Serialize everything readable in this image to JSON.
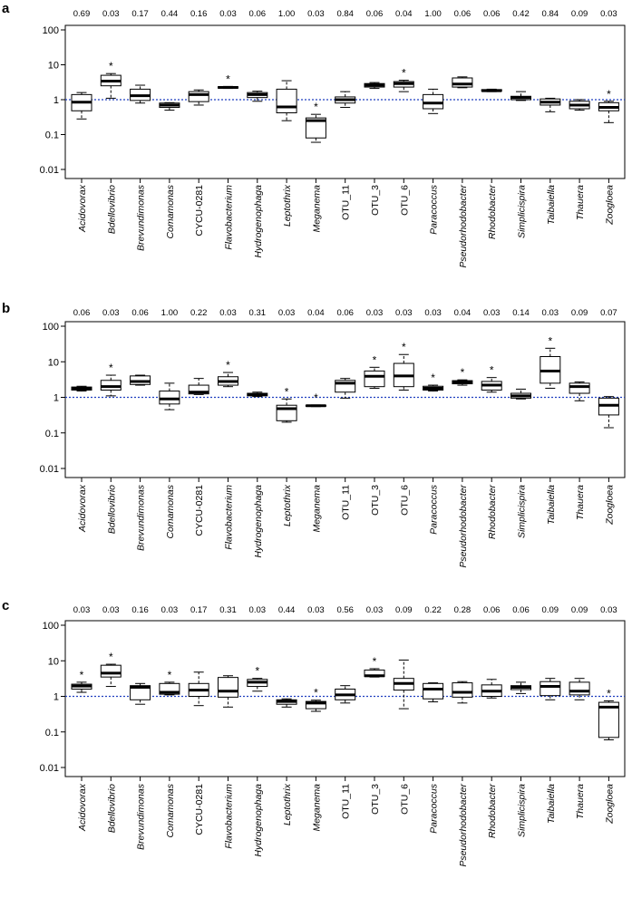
{
  "chart_data": [
    {
      "type": "box",
      "panel": "a",
      "yscale": "log",
      "ylim": [
        0.01,
        100
      ],
      "ytick_labels": [
        "0.01",
        "0.1",
        "1",
        "10",
        "100"
      ],
      "reference_line": 1,
      "reference_line_color": "#1f3fbf",
      "categories": [
        "Acidovorax",
        "Bdellovibrio",
        "Brevundimonas",
        "Comamonas",
        "CYCU-0281",
        "Flavobacterium",
        "Hydrogenophaga",
        "Leptothrix",
        "Meganema",
        "OTU_11",
        "OTU_3",
        "OTU_6",
        "Paracoccus",
        "Pseudorhodobacter",
        "Rhodobacter",
        "Simplicispira",
        "Taibaiella",
        "Thauera",
        "Zoogloea"
      ],
      "italic": [
        true,
        true,
        true,
        true,
        false,
        true,
        true,
        true,
        true,
        false,
        false,
        false,
        true,
        true,
        true,
        true,
        true,
        true,
        true
      ],
      "pvalues": [
        "0.69",
        "0.03",
        "0.17",
        "0.44",
        "0.16",
        "0.03",
        "0.06",
        "1.00",
        "0.03",
        "0.84",
        "0.06",
        "0.04",
        "1.00",
        "0.06",
        "0.06",
        "0.42",
        "0.84",
        "0.09",
        "0.03"
      ],
      "significance_marker": "*",
      "significant": [
        false,
        true,
        false,
        false,
        false,
        true,
        false,
        false,
        true,
        false,
        false,
        true,
        false,
        false,
        false,
        false,
        false,
        false,
        true
      ],
      "boxes": [
        {
          "min": 0.28,
          "q1": 0.48,
          "median": 0.85,
          "q3": 1.4,
          "max": 1.6
        },
        {
          "min": 1.1,
          "q1": 2.5,
          "median": 3.4,
          "q3": 5.0,
          "max": 5.6
        },
        {
          "min": 0.8,
          "q1": 0.95,
          "median": 1.3,
          "q3": 2.0,
          "max": 2.6
        },
        {
          "min": 0.5,
          "q1": 0.6,
          "median": 0.7,
          "q3": 0.8,
          "max": 0.82
        },
        {
          "min": 0.7,
          "q1": 0.88,
          "median": 1.4,
          "q3": 1.7,
          "max": 1.9
        },
        {
          "min": 2.1,
          "q1": 2.15,
          "median": 2.25,
          "q3": 2.35,
          "max": 2.4
        },
        {
          "min": 0.9,
          "q1": 1.15,
          "median": 1.4,
          "q3": 1.6,
          "max": 1.75
        },
        {
          "min": 0.25,
          "q1": 0.42,
          "median": 0.62,
          "q3": 2.0,
          "max": 3.5
        },
        {
          "min": 0.06,
          "q1": 0.08,
          "median": 0.25,
          "q3": 0.3,
          "max": 0.38
        },
        {
          "min": 0.6,
          "q1": 0.8,
          "median": 1.0,
          "q3": 1.2,
          "max": 1.7
        },
        {
          "min": 2.1,
          "q1": 2.3,
          "median": 2.6,
          "q3": 2.9,
          "max": 3.1
        },
        {
          "min": 1.7,
          "q1": 2.3,
          "median": 2.9,
          "q3": 3.3,
          "max": 3.6
        },
        {
          "min": 0.4,
          "q1": 0.55,
          "median": 0.8,
          "q3": 1.4,
          "max": 2.0
        },
        {
          "min": 2.2,
          "q1": 2.3,
          "median": 2.8,
          "q3": 4.2,
          "max": 4.5
        },
        {
          "min": 1.7,
          "q1": 1.75,
          "median": 1.8,
          "q3": 1.95,
          "max": 2.0
        },
        {
          "min": 0.95,
          "q1": 1.0,
          "median": 1.15,
          "q3": 1.25,
          "max": 1.7
        },
        {
          "min": 0.45,
          "q1": 0.7,
          "median": 0.85,
          "q3": 1.05,
          "max": 1.1
        },
        {
          "min": 0.5,
          "q1": 0.55,
          "median": 0.7,
          "q3": 0.9,
          "max": 1.0
        },
        {
          "min": 0.22,
          "q1": 0.48,
          "median": 0.6,
          "q3": 0.82,
          "max": 0.9
        }
      ]
    },
    {
      "type": "box",
      "panel": "b",
      "yscale": "log",
      "ylim": [
        0.01,
        100
      ],
      "ytick_labels": [
        "0.01",
        "0.1",
        "1",
        "10",
        "100"
      ],
      "reference_line": 1,
      "reference_line_color": "#1f3fbf",
      "categories": [
        "Acidovorax",
        "Bdellovibrio",
        "Brevundimonas",
        "Comamonas",
        "CYCU-0281",
        "Flavobacterium",
        "Hydrogenophaga",
        "Leptothrix",
        "Meganema",
        "OTU_11",
        "OTU_3",
        "OTU_6",
        "Paracoccus",
        "Pseudorhodobacter",
        "Rhodobacter",
        "Simplicispira",
        "Taibaiella",
        "Thauera",
        "Zoogloea"
      ],
      "italic": [
        true,
        true,
        true,
        true,
        false,
        true,
        true,
        true,
        true,
        false,
        false,
        false,
        true,
        true,
        true,
        true,
        true,
        true,
        true
      ],
      "pvalues": [
        "0.06",
        "0.03",
        "0.06",
        "1.00",
        "0.22",
        "0.03",
        "0.31",
        "0.03",
        "0.04",
        "0.06",
        "0.03",
        "0.03",
        "0.03",
        "0.04",
        "0.03",
        "0.14",
        "0.03",
        "0.09",
        "0.07"
      ],
      "significance_marker": "*",
      "significant": [
        false,
        true,
        false,
        false,
        false,
        true,
        false,
        true,
        true,
        false,
        true,
        true,
        true,
        true,
        true,
        false,
        true,
        false,
        false
      ],
      "boxes": [
        {
          "min": 1.5,
          "q1": 1.6,
          "median": 1.75,
          "q3": 1.95,
          "max": 2.05
        },
        {
          "min": 1.1,
          "q1": 1.6,
          "median": 2.0,
          "q3": 3.0,
          "max": 4.2
        },
        {
          "min": 2.2,
          "q1": 2.3,
          "median": 2.8,
          "q3": 4.0,
          "max": 4.2
        },
        {
          "min": 0.45,
          "q1": 0.65,
          "median": 0.9,
          "q3": 1.5,
          "max": 2.5
        },
        {
          "min": 1.2,
          "q1": 1.25,
          "median": 1.4,
          "q3": 2.2,
          "max": 3.4
        },
        {
          "min": 2.0,
          "q1": 2.2,
          "median": 2.8,
          "q3": 3.8,
          "max": 5.0
        },
        {
          "min": 1.05,
          "q1": 1.1,
          "median": 1.2,
          "q3": 1.3,
          "max": 1.4
        },
        {
          "min": 0.2,
          "q1": 0.22,
          "median": 0.48,
          "q3": 0.6,
          "max": 0.9
        },
        {
          "min": 0.55,
          "q1": 0.56,
          "median": 0.58,
          "q3": 0.6,
          "max": 0.61
        },
        {
          "min": 0.95,
          "q1": 1.4,
          "median": 2.5,
          "q3": 3.0,
          "max": 3.4
        },
        {
          "min": 1.8,
          "q1": 2.0,
          "median": 3.9,
          "q3": 5.5,
          "max": 7.0
        },
        {
          "min": 1.6,
          "q1": 2.0,
          "median": 4.0,
          "q3": 9.0,
          "max": 16.0
        },
        {
          "min": 1.5,
          "q1": 1.6,
          "median": 1.8,
          "q3": 2.05,
          "max": 2.2
        },
        {
          "min": 2.2,
          "q1": 2.4,
          "median": 2.7,
          "q3": 2.95,
          "max": 3.1
        },
        {
          "min": 1.4,
          "q1": 1.6,
          "median": 2.2,
          "q3": 2.8,
          "max": 3.6
        },
        {
          "min": 0.9,
          "q1": 0.95,
          "median": 1.1,
          "q3": 1.3,
          "max": 1.7
        },
        {
          "min": 1.8,
          "q1": 2.5,
          "median": 5.5,
          "q3": 14.0,
          "max": 24.0
        },
        {
          "min": 0.8,
          "q1": 1.3,
          "median": 2.0,
          "q3": 2.5,
          "max": 2.7
        },
        {
          "min": 0.14,
          "q1": 0.32,
          "median": 0.6,
          "q3": 0.95,
          "max": 1.05
        }
      ]
    },
    {
      "type": "box",
      "panel": "c",
      "yscale": "log",
      "ylim": [
        0.01,
        100
      ],
      "ytick_labels": [
        "0.01",
        "0.1",
        "1",
        "10",
        "100"
      ],
      "reference_line": 1,
      "reference_line_color": "#1f3fbf",
      "categories": [
        "Acidovorax",
        "Bdellovibrio",
        "Brevundimonas",
        "Comamonas",
        "CYCU-0281",
        "Flavobacterium",
        "Hydrogenophaga",
        "Leptothrix",
        "Meganema",
        "OTU_11",
        "OTU_3",
        "OTU_6",
        "Paracoccus",
        "Pseudorhodobacter",
        "Rhodobacter",
        "Simplicispira",
        "Taibaiella",
        "Thauera",
        "Zoogloea"
      ],
      "italic": [
        true,
        true,
        true,
        true,
        false,
        true,
        true,
        true,
        true,
        false,
        false,
        false,
        true,
        true,
        true,
        true,
        true,
        true,
        true
      ],
      "pvalues": [
        "0.03",
        "0.03",
        "0.16",
        "0.03",
        "0.17",
        "0.31",
        "0.03",
        "0.44",
        "0.03",
        "0.56",
        "0.03",
        "0.09",
        "0.22",
        "0.28",
        "0.06",
        "0.06",
        "0.09",
        "0.09",
        "0.03"
      ],
      "significance_marker": "*",
      "significant": [
        true,
        true,
        false,
        true,
        false,
        false,
        true,
        false,
        true,
        false,
        true,
        false,
        false,
        false,
        false,
        false,
        false,
        false,
        true
      ],
      "boxes": [
        {
          "min": 1.3,
          "q1": 1.6,
          "median": 1.95,
          "q3": 2.2,
          "max": 2.5
        },
        {
          "min": 1.9,
          "q1": 3.5,
          "median": 4.5,
          "q3": 7.5,
          "max": 8.0
        },
        {
          "min": 0.6,
          "q1": 0.8,
          "median": 1.8,
          "q3": 2.0,
          "max": 2.3
        },
        {
          "min": 1.1,
          "q1": 1.15,
          "median": 1.3,
          "q3": 2.3,
          "max": 2.5
        },
        {
          "min": 0.55,
          "q1": 1.0,
          "median": 1.5,
          "q3": 2.3,
          "max": 4.8
        },
        {
          "min": 0.5,
          "q1": 0.95,
          "median": 1.4,
          "q3": 3.4,
          "max": 3.8
        },
        {
          "min": 1.4,
          "q1": 1.9,
          "median": 2.5,
          "q3": 3.0,
          "max": 3.2
        },
        {
          "min": 0.5,
          "q1": 0.6,
          "median": 0.72,
          "q3": 0.8,
          "max": 0.85
        },
        {
          "min": 0.38,
          "q1": 0.45,
          "median": 0.65,
          "q3": 0.72,
          "max": 0.78
        },
        {
          "min": 0.65,
          "q1": 0.8,
          "median": 1.1,
          "q3": 1.6,
          "max": 2.0
        },
        {
          "min": 3.5,
          "q1": 3.6,
          "median": 3.8,
          "q3": 5.5,
          "max": 6.0
        },
        {
          "min": 0.45,
          "q1": 1.5,
          "median": 2.3,
          "q3": 3.2,
          "max": 10.5
        },
        {
          "min": 0.7,
          "q1": 0.85,
          "median": 1.6,
          "q3": 2.3,
          "max": 2.4
        },
        {
          "min": 0.65,
          "q1": 0.95,
          "median": 1.3,
          "q3": 2.4,
          "max": 2.6
        },
        {
          "min": 0.9,
          "q1": 1.0,
          "median": 1.4,
          "q3": 2.1,
          "max": 3.0
        },
        {
          "min": 1.2,
          "q1": 1.55,
          "median": 1.8,
          "q3": 2.0,
          "max": 2.5
        },
        {
          "min": 0.8,
          "q1": 1.05,
          "median": 1.9,
          "q3": 2.6,
          "max": 3.2
        },
        {
          "min": 0.8,
          "q1": 1.1,
          "median": 1.4,
          "q3": 2.5,
          "max": 3.2
        },
        {
          "min": 0.06,
          "q1": 0.07,
          "median": 0.5,
          "q3": 0.68,
          "max": 0.75
        }
      ]
    }
  ]
}
